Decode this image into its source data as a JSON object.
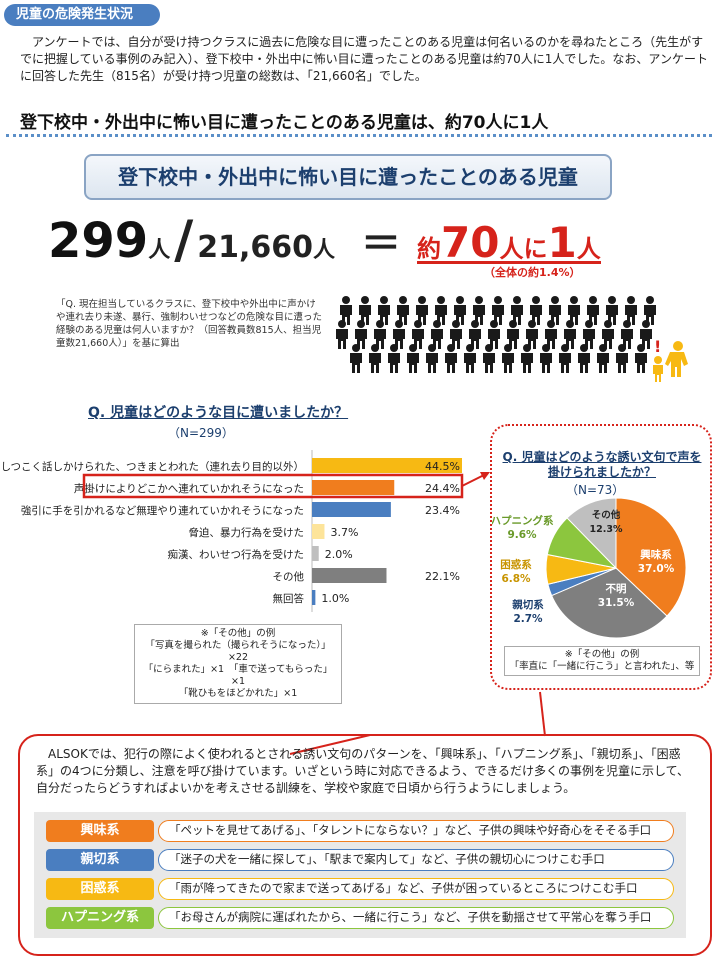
{
  "section_tag": "児童の危険発生状況",
  "intro": "　アンケートでは、自分が受け持つクラスに過去に危険な目に遭ったことのある児童は何名いるのかを尋ねたところ（先生がすでに把握している事例のみ記入）、登下校中・外出中に怖い目に遭ったことのある児童は約70人に1人でした。なお、アンケートに回答した先生（815名）が受け持つ児童の総数は、「21,660名」でした。",
  "headline": "登下校中・外出中に怖い目に遭ったことのある児童は、約70人に1人",
  "box_title": "登下校中・外出中に怖い目に遭ったことのある児童",
  "equation": {
    "num": "299",
    "unit1": "人",
    "slash": "/",
    "den": "21,660",
    "unit2": "人",
    "equals": "＝",
    "res_pre": "約",
    "res_num": "70",
    "res_mid": "人に",
    "res_one": "1",
    "res_unit": "人",
    "sub": "（全体の約1.4%）"
  },
  "source_note": "「Q. 現在担当しているクラスに、登下校中や外出中に声かけや連れ去り未遂、暴行、強制わいせつなどの危険な目に遭った経験のある児童は何人いますか？（回答教員数815人、担当児童数21,660人）」を基に算出",
  "icons": {
    "crowd": "crowd-people-icon",
    "alert": "child-alert-icon"
  },
  "colors": {
    "orange": "#f07d1e",
    "blue": "#4a7ec0",
    "yellow": "#f7b913",
    "green": "#8cc63e",
    "gray": "#7f7f7f",
    "red": "#d6231b"
  },
  "bar_chart": {
    "type": "bar",
    "title": "Q. 児童はどのような目に遭いましたか？",
    "n": "（N=299）",
    "categories": [
      "しつこく話しかけられた、つきまとわれた（連れ去り目的以外）",
      "声掛けによりどこかへ連れていかれそうになった",
      "強引に手を引かれるなど無理やり連れていかれそうになった",
      "脅迫、暴力行為を受けた",
      "痴漢、わいせつ行為を受けた",
      "その他",
      "無回答"
    ],
    "values": [
      44.5,
      24.4,
      23.4,
      3.7,
      2.0,
      22.1,
      1.0
    ],
    "value_labels": [
      "44.5%",
      "24.4%",
      "23.4%",
      "3.7%",
      "2.0%",
      "22.1%",
      "1.0%"
    ],
    "bar_colors": [
      "#f7b913",
      "#f07d1e",
      "#4a7ec0",
      "#fde49a",
      "#bfbfbf",
      "#7f7f7f",
      "#4a7ec0"
    ],
    "highlight_index": 1
  },
  "bar_note": {
    "title": "※「その他」の例",
    "lines": [
      "「写真を撮られた（撮られそうになった）」×22",
      "「にらまれた」×1　「車で送ってもらった」×1",
      "「靴ひもをほどかれた」×1"
    ]
  },
  "pie_chart": {
    "type": "pie",
    "title": "Q. 児童はどのような誘い文句で声を掛けられましたか？",
    "n": "（N=73）",
    "slices": [
      {
        "name": "興味系",
        "value": 37.0,
        "label": "37.0%",
        "color": "#f07d1e"
      },
      {
        "name": "不明",
        "value": 31.5,
        "label": "31.5%",
        "color": "#7f7f7f"
      },
      {
        "name": "親切系",
        "value": 2.7,
        "label": "2.7%",
        "color": "#4a7ec0"
      },
      {
        "name": "困惑系",
        "value": 6.8,
        "label": "6.8%",
        "color": "#f7b913"
      },
      {
        "name": "ハプニング系",
        "value": 9.6,
        "label": "9.6%",
        "color": "#8cc63e"
      },
      {
        "name": "その他",
        "value": 12.3,
        "label": "12.3%",
        "color": "#bfbfbf"
      }
    ]
  },
  "pie_note": {
    "title": "※「その他」の例",
    "line": "「率直に「一緒に行こう」と言われた」、等"
  },
  "alsok_text": "　ALSOKでは、犯行の際によく使われるとされる誘い文句のパターンを、「興味系」、「ハプニング系」、「親切系」、「困惑系」の4つに分類し、注意を呼び掛けています。いざという時に対応できるよう、できるだけ多くの事例を児童に示して、自分だったらどうすればよいかを考えさせる訓練を、学校や家庭で日頃から行うようにしましょう。",
  "patterns": [
    {
      "label": "興味系",
      "color": "#f07d1e",
      "text": "「ペットを見せてあげる」、「タレントにならない？」など、子供の興味や好奇心をそそる手口"
    },
    {
      "label": "親切系",
      "color": "#4a7ec0",
      "text": "「迷子の犬を一緒に探して」、「駅まで案内して」など、子供の親切心につけこむ手口"
    },
    {
      "label": "困惑系",
      "color": "#f7b913",
      "text": "「雨が降ってきたので家まで送ってあげる」など、子供が困っているところにつけこむ手口"
    },
    {
      "label": "ハプニング系",
      "color": "#8cc63e",
      "text": "「お母さんが病院に運ばれたから、一緒に行こう」など、子供を動揺させて平常心を奪う手口"
    }
  ]
}
